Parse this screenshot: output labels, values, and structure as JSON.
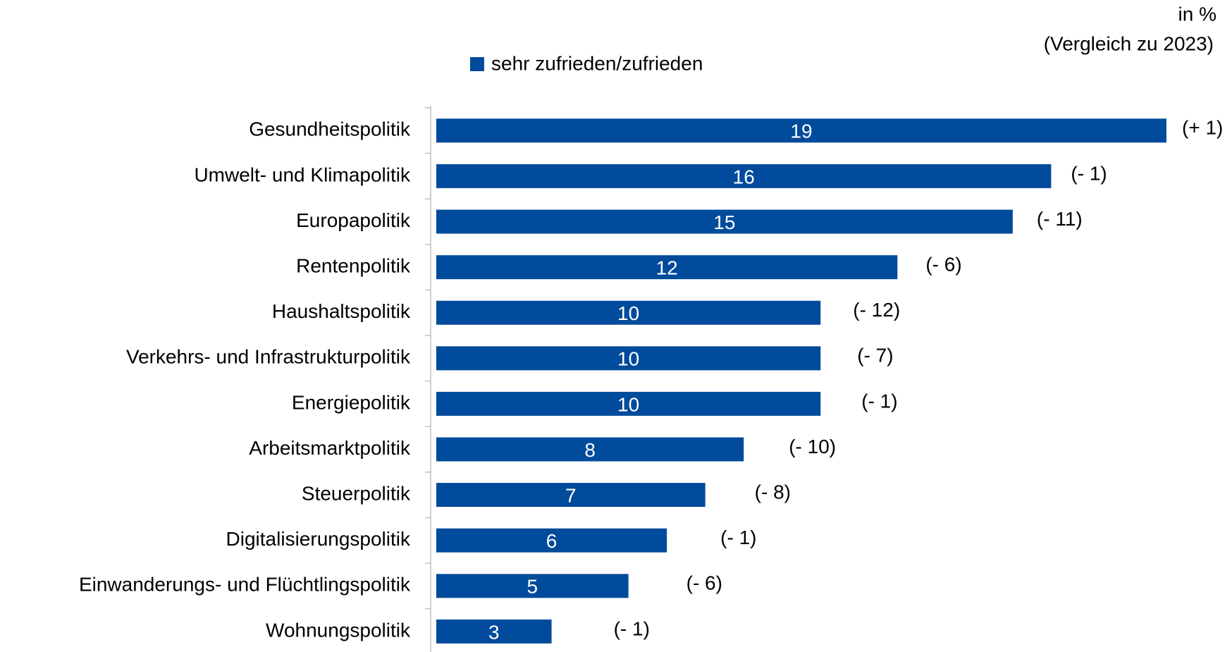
{
  "chart_data": {
    "type": "barh",
    "subtitle": "in %",
    "note": "(Vergleich zu 2023)",
    "categories": [
      "Gesundheitspolitik",
      "Umwelt- und Klimapolitik",
      "Europapolitik",
      "Rentenpolitik",
      "Haushaltspolitik",
      "Verkehrs- und Infrastrukturpolitik",
      "Energiepolitik",
      "Arbeitsmarktpolitik",
      "Steuerpolitik",
      "Digitalisierungspolitik",
      "Einwanderungs- und Flüchtlingspolitik",
      "Wohnungspolitik"
    ],
    "series": [
      {
        "name": "sehr zufrieden/zufrieden",
        "color": "#004b9b",
        "values": [
          19,
          16,
          15,
          12,
          10,
          10,
          10,
          8,
          7,
          6,
          5,
          3
        ]
      }
    ],
    "changes": [
      "(+ 1)",
      "(- 1)",
      "(- 11)",
      "(- 6)",
      "(- 12)",
      "(- 7)",
      "(- 1)",
      "(- 10)",
      "(- 8)",
      "(- 1)",
      "(- 6)",
      "(- 1)"
    ],
    "xlim": [
      0,
      19
    ]
  }
}
